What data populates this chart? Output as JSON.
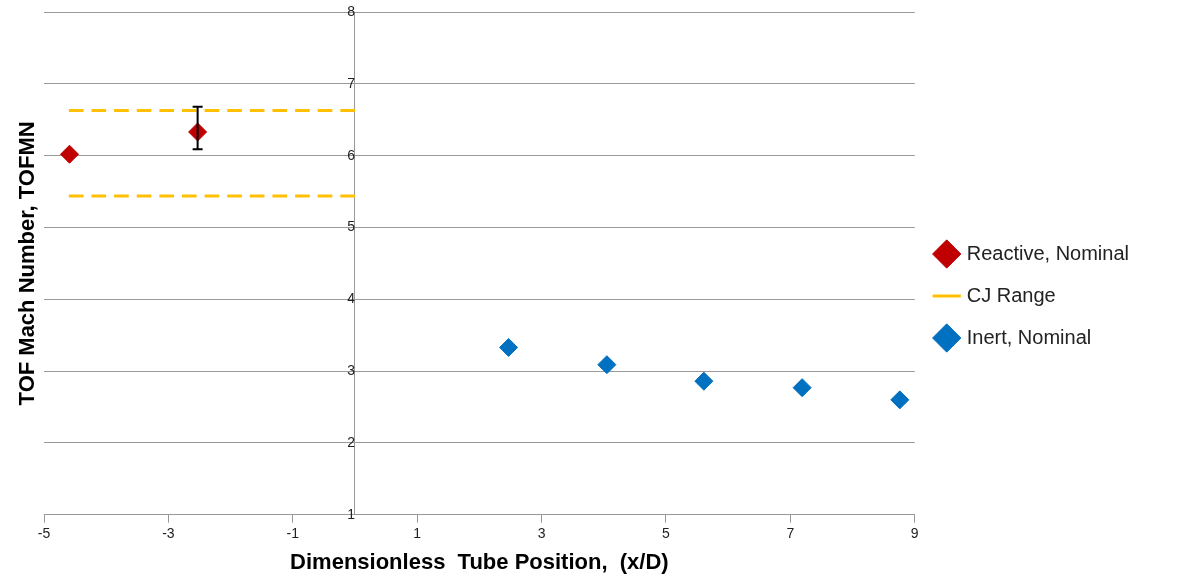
{
  "chart_data": {
    "type": "scatter",
    "xlabel": "Dimensionless  Tube Position,  (x/D)",
    "ylabel": "TOF Mach Number, TOFMN",
    "xlim": [
      -5,
      9
    ],
    "xticks": [
      -5,
      -3,
      -1,
      1,
      3,
      5,
      7,
      9
    ],
    "ylim": [
      1,
      8
    ],
    "yticks": [
      1,
      2,
      3,
      4,
      5,
      6,
      7,
      8
    ],
    "grid": "y",
    "legend": "right",
    "marker": "diamond",
    "series": [
      {
        "name": "Reactive, Nominal",
        "color": "#c00000",
        "x": [
          -4.59,
          -2.53
        ],
        "values": [
          6.02,
          6.33
        ],
        "errors": [
          null,
          [
            6.09,
            6.68
          ]
        ]
      },
      {
        "name": "CJ Range",
        "type": "line",
        "color": "#ffc000",
        "line_style": "dashed",
        "marker": "none",
        "x": [
          -4.6,
          0
        ],
        "values": [
          6.63,
          6.63
        ]
      },
      {
        "type": "line",
        "color": "#ffc000",
        "line_style": "dashed",
        "marker": "none",
        "x": [
          -4.6,
          0
        ],
        "values": [
          5.44,
          5.44
        ]
      },
      {
        "name": "Inert, Nominal",
        "color": "#0070c0",
        "x": [
          2.47,
          4.05,
          5.61,
          7.19,
          8.76
        ],
        "values": [
          3.33,
          3.09,
          2.86,
          2.77,
          2.6
        ]
      }
    ]
  }
}
